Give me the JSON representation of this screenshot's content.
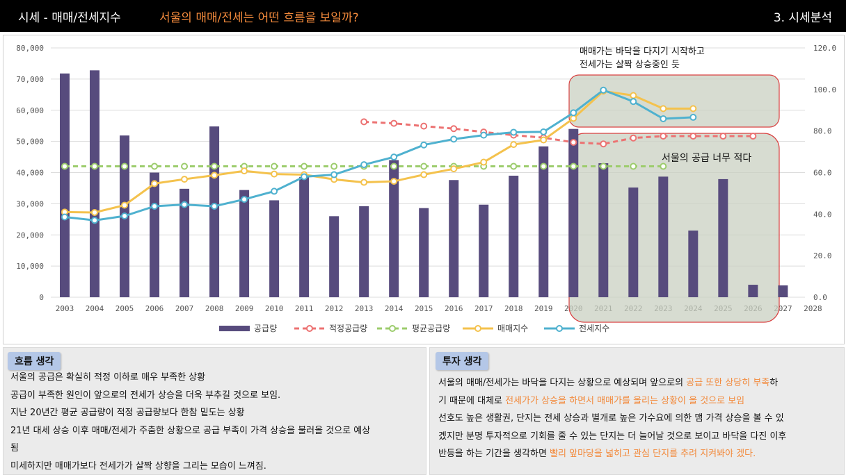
{
  "header": {
    "title": "시세 - 매매/전세지수",
    "subtitle": "서울의 매매/전세는 어떤 흐름을 보일까?",
    "section": "3. 시세분석"
  },
  "annotations": {
    "top_note_line1": "매매가는 바닥을 다지기 시작하고",
    "top_note_line2": "전세가는 살짝 상승중인 듯",
    "supply_note": "서울의 공급 너무 적다"
  },
  "colors": {
    "supply": "#574b7d",
    "proper_supply": "#ec7272",
    "average_supply": "#9ccc6c",
    "sale_index": "#f4c24d",
    "jeonse_index": "#4fb1cf",
    "header_accent": "#f28a3c",
    "highlight_box_fill": "#c9d0c2",
    "highlight_box_border": "#d94040"
  },
  "chart_data": {
    "type": "bar",
    "categories": [
      "2003",
      "2004",
      "2005",
      "2006",
      "2007",
      "2008",
      "2009",
      "2010",
      "2011",
      "2012",
      "2013",
      "2014",
      "2015",
      "2016",
      "2017",
      "2018",
      "2019",
      "2020",
      "2021",
      "2022",
      "2023",
      "2024",
      "2025",
      "2026",
      "2027",
      "2028"
    ],
    "y_left": {
      "ylim": [
        0,
        80000
      ],
      "ticks": [
        "0",
        "10,000",
        "20,000",
        "30,000",
        "40,000",
        "50,000",
        "60,000",
        "70,000",
        "80,000"
      ]
    },
    "y_right": {
      "ylim": [
        0,
        120
      ],
      "ticks": [
        "0.0",
        "20.0",
        "40.0",
        "60.0",
        "80.0",
        "100.0",
        "120.0"
      ]
    },
    "legend_position": "bottom",
    "series": [
      {
        "name": "공급량",
        "type": "bar",
        "axis": "left",
        "values": [
          71800,
          72800,
          51900,
          40000,
          34800,
          54800,
          34400,
          31100,
          38600,
          26000,
          29200,
          44000,
          28600,
          37600,
          29700,
          39000,
          48400,
          54000,
          43000,
          35200,
          38700,
          21400,
          37900,
          4000,
          3800,
          null
        ]
      },
      {
        "name": "적정공급량",
        "type": "line",
        "style": "dashed",
        "axis": "left",
        "values": [
          null,
          null,
          null,
          null,
          null,
          null,
          null,
          null,
          null,
          null,
          56300,
          55800,
          54900,
          54100,
          53000,
          52000,
          51200,
          49700,
          49200,
          51100,
          51700,
          51700,
          51700,
          51700,
          null,
          null
        ]
      },
      {
        "name": "평균공급량",
        "type": "line",
        "style": "dashed",
        "axis": "left",
        "values": [
          42000,
          42000,
          42000,
          42000,
          42000,
          42000,
          42000,
          42000,
          42000,
          42000,
          42000,
          42000,
          42000,
          42000,
          42000,
          42000,
          42000,
          42000,
          42000,
          42000,
          42000,
          null,
          null,
          null,
          null,
          null
        ]
      },
      {
        "name": "매매지수",
        "type": "line",
        "axis": "right",
        "values": [
          41,
          40.8,
          44.3,
          54.7,
          56.8,
          58.7,
          60.8,
          59.3,
          59.0,
          56.7,
          55.3,
          55.8,
          59.0,
          61.8,
          65.0,
          73.5,
          75.7,
          86.1,
          99.2,
          97.1,
          90.8,
          90.8,
          null,
          null,
          null,
          null
        ]
      },
      {
        "name": "전세지수",
        "type": "line",
        "axis": "right",
        "values": [
          38.6,
          37.0,
          39.1,
          43.8,
          44.6,
          43.8,
          47.1,
          51.0,
          58.0,
          59.0,
          63.8,
          67.5,
          73.3,
          76.1,
          78.0,
          79.4,
          79.6,
          88.8,
          99.7,
          94.2,
          85.9,
          86.6,
          null,
          null,
          null,
          null
        ]
      }
    ]
  },
  "panels": {
    "left": {
      "tag": "흐름 생각",
      "lines": [
        "서울의 공급은 확실히 적정 이하로 매우 부족한 상황",
        "공급이 부족한 원인이 앞으로의 전세가 상승을 더욱 부추길 것으로 보임.",
        "지난 20년간 평균 공급량이 적정 공급량보다 한참 밑도는 상황",
        "21년 대세 상승 이후 매매/전세가 주춤한 상황으로 공급 부족이 가격 상승을 불러올 것으로 예상",
        "됨",
        "미세하지만 매매가보다 전세가가 살짝 상향을 그리는 모습이 느껴짐."
      ]
    },
    "right": {
      "tag": "투자 생각",
      "line1_a": "서울의 매매/전세가는 바닥을 다지는 상황으로 예상되며 앞으로의 ",
      "line1_hl": "공급 또한 상당히 부족",
      "line1_b": "하",
      "line2_a": "기 때문에 대체로 ",
      "line2_hl": "전세가가 상승을 하면서 매매가를 올리는 상황이 올 것으로 보임",
      "line3": "선호도 높은 생활권, 단지는 전세 상승과 별개로 높은 가수요에 의한 맴 가격 상승을 볼 수 있",
      "line4": "겠지만 분명 투자적으로 기회를 줄 수 있는 단지는 더 늘어날 것으로 보이고 바닥을 다진 이후",
      "line5_a": "반등을 하는 기간을 생각하면 ",
      "line5_hl": "빨리 앞마당을 넓히고 관심 단지를 추려 지켜봐야 겠다."
    }
  }
}
